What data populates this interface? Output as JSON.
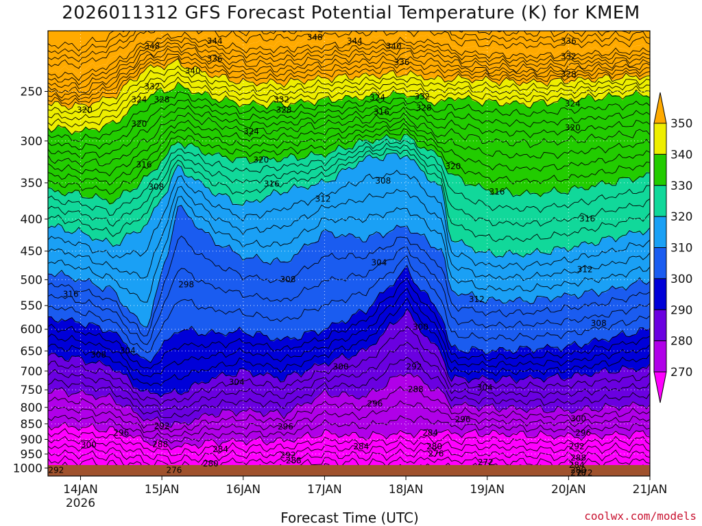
{
  "title": "2026011312 GFS Forecast Potential Temperature (K) for KMEM",
  "credit": "coolwx.com/models",
  "chart_data": {
    "type": "heatmap",
    "title": "2026011312 GFS Forecast Potential Temperature (K) for KMEM",
    "xlabel": "Forecast Time (UTC)",
    "ylabel": "",
    "y_log_pressure": true,
    "ylim": [
      1030,
      200
    ],
    "xlim_days": [
      13.6,
      21.0
    ],
    "x_ticks": [
      {
        "label": "14JAN",
        "sub": "2026",
        "day": 14
      },
      {
        "label": "15JAN",
        "sub": "",
        "day": 15
      },
      {
        "label": "16JAN",
        "sub": "",
        "day": 16
      },
      {
        "label": "17JAN",
        "sub": "",
        "day": 17
      },
      {
        "label": "18JAN",
        "sub": "",
        "day": 18
      },
      {
        "label": "19JAN",
        "sub": "",
        "day": 19
      },
      {
        "label": "20JAN",
        "sub": "",
        "day": 20
      },
      {
        "label": "21JAN",
        "sub": "",
        "day": 21
      }
    ],
    "y_ticks": [
      {
        "label": "250",
        "p": 250
      },
      {
        "label": "300",
        "p": 300
      },
      {
        "label": "350",
        "p": 350
      },
      {
        "label": "400",
        "p": 400
      },
      {
        "label": "450",
        "p": 450
      },
      {
        "label": "500",
        "p": 500
      },
      {
        "label": "550",
        "p": 550
      },
      {
        "label": "600",
        "p": 600
      },
      {
        "label": "650",
        "p": 650
      },
      {
        "label": "700",
        "p": 700
      },
      {
        "label": "750",
        "p": 750
      },
      {
        "label": "800",
        "p": 800
      },
      {
        "label": "850",
        "p": 850
      },
      {
        "label": "900",
        "p": 900
      },
      {
        "label": "950",
        "p": 950
      },
      {
        "label": "1000",
        "p": 1000
      }
    ],
    "colorbar": {
      "levels": [
        270,
        280,
        290,
        300,
        310,
        320,
        330,
        340,
        350
      ],
      "labels": [
        "270",
        "280",
        "290",
        "300",
        "310",
        "320",
        "330",
        "340",
        "350"
      ],
      "colors": [
        "#ff00ff",
        "#b000e8",
        "#6a00e0",
        "#0000d8",
        "#1a5cf0",
        "#1aa0f5",
        "#11d89a",
        "#22cc00",
        "#eeee00",
        "#ffaa00"
      ]
    },
    "band_colors": [
      "#ff00ff",
      "#ee00f6",
      "#c000ee",
      "#9b00e6",
      "#7a00e0",
      "#5200d8",
      "#1d00d0",
      "#0000d8",
      "#0020dc",
      "#1048e8",
      "#1a6df2",
      "#1a8cf5",
      "#20a8f5",
      "#22c8e8",
      "#11dda8",
      "#10e080",
      "#22cc22",
      "#22c400",
      "#88dd00",
      "#e0e800",
      "#ffd400",
      "#ffaa00"
    ],
    "columns": [
      {
        "d": 13.6,
        "p": [
          855,
          750,
          660,
          575,
          485,
          410,
          360,
          320,
          285,
          262,
          248,
          230
        ]
      },
      {
        "d": 14.0,
        "p": [
          860,
          760,
          670,
          585,
          500,
          420,
          365,
          325,
          290,
          264,
          250,
          232
        ]
      },
      {
        "d": 14.4,
        "p": [
          870,
          775,
          690,
          605,
          520,
          440,
          375,
          325,
          282,
          255,
          238,
          222
        ]
      },
      {
        "d": 14.8,
        "p": [
          905,
          835,
          760,
          680,
          600,
          410,
          345,
          300,
          255,
          230,
          218,
          205
        ]
      },
      {
        "d": 15.2,
        "p": [
          925,
          855,
          760,
          600,
          380,
          330,
          300,
          272,
          245,
          225,
          212,
          200
        ]
      },
      {
        "d": 15.6,
        "p": [
          910,
          820,
          720,
          610,
          430,
          360,
          315,
          280,
          255,
          235,
          220,
          205
        ]
      },
      {
        "d": 16.0,
        "p": [
          905,
          810,
          700,
          605,
          460,
          380,
          322,
          290,
          262,
          242,
          226,
          210
        ]
      },
      {
        "d": 16.5,
        "p": [
          905,
          820,
          720,
          625,
          470,
          360,
          320,
          288,
          262,
          242,
          226,
          210
        ]
      },
      {
        "d": 17.0,
        "p": [
          880,
          760,
          680,
          600,
          420,
          350,
          315,
          282,
          258,
          238,
          222,
          208
        ]
      },
      {
        "d": 17.5,
        "p": [
          890,
          770,
          650,
          560,
          430,
          320,
          300,
          278,
          255,
          236,
          220,
          206
        ]
      },
      {
        "d": 18.0,
        "p": [
          880,
          700,
          560,
          480,
          410,
          315,
          295,
          275,
          252,
          234,
          218,
          205
        ]
      },
      {
        "d": 18.45,
        "p": [
          875,
          760,
          660,
          570,
          450,
          360,
          320,
          295,
          262,
          240,
          220,
          205
        ]
      },
      {
        "d": 18.55,
        "p": [
          880,
          790,
          720,
          645,
          520,
          430,
          340,
          290,
          255,
          238,
          225,
          212
        ]
      },
      {
        "d": 19.0,
        "p": [
          880,
          800,
          720,
          650,
          540,
          455,
          360,
          300,
          260,
          240,
          228,
          215
        ]
      },
      {
        "d": 19.5,
        "p": [
          885,
          805,
          720,
          645,
          540,
          455,
          365,
          303,
          262,
          242,
          230,
          216
        ]
      },
      {
        "d": 20.0,
        "p": [
          890,
          810,
          715,
          640,
          530,
          445,
          360,
          300,
          258,
          240,
          228,
          215
        ]
      },
      {
        "d": 20.5,
        "p": [
          885,
          800,
          700,
          620,
          520,
          430,
          350,
          295,
          255,
          238,
          226,
          214
        ]
      },
      {
        "d": 21.0,
        "p": [
          880,
          790,
          690,
          600,
          500,
          415,
          340,
          290,
          252,
          236,
          225,
          212
        ]
      }
    ],
    "contour_labels": [
      {
        "t": "348",
        "d": 14.88,
        "p": 212
      },
      {
        "t": "344",
        "d": 15.65,
        "p": 208
      },
      {
        "t": "348",
        "d": 16.88,
        "p": 205
      },
      {
        "t": "344",
        "d": 17.37,
        "p": 208
      },
      {
        "t": "340",
        "d": 17.85,
        "p": 212
      },
      {
        "t": "336",
        "d": 17.95,
        "p": 225
      },
      {
        "t": "340",
        "d": 15.38,
        "p": 232
      },
      {
        "t": "336",
        "d": 15.65,
        "p": 222
      },
      {
        "t": "336",
        "d": 20.0,
        "p": 208
      },
      {
        "t": "332",
        "d": 20.0,
        "p": 220
      },
      {
        "t": "328",
        "d": 20.0,
        "p": 235
      },
      {
        "t": "324",
        "d": 20.05,
        "p": 262
      },
      {
        "t": "332",
        "d": 14.88,
        "p": 246
      },
      {
        "t": "324",
        "d": 14.72,
        "p": 258
      },
      {
        "t": "328",
        "d": 15.0,
        "p": 258
      },
      {
        "t": "332",
        "d": 16.47,
        "p": 258
      },
      {
        "t": "328",
        "d": 16.5,
        "p": 268
      },
      {
        "t": "324",
        "d": 17.65,
        "p": 256
      },
      {
        "t": "316",
        "d": 17.7,
        "p": 270
      },
      {
        "t": "332",
        "d": 18.2,
        "p": 255
      },
      {
        "t": "328",
        "d": 18.22,
        "p": 266
      },
      {
        "t": "320",
        "d": 14.05,
        "p": 268
      },
      {
        "t": "320",
        "d": 14.72,
        "p": 282
      },
      {
        "t": "324",
        "d": 16.1,
        "p": 290
      },
      {
        "t": "320",
        "d": 16.22,
        "p": 322
      },
      {
        "t": "316",
        "d": 14.78,
        "p": 328
      },
      {
        "t": "316",
        "d": 16.35,
        "p": 352
      },
      {
        "t": "312",
        "d": 16.98,
        "p": 372
      },
      {
        "t": "308",
        "d": 14.93,
        "p": 356
      },
      {
        "t": "308",
        "d": 17.72,
        "p": 348
      },
      {
        "t": "320",
        "d": 18.58,
        "p": 330
      },
      {
        "t": "320",
        "d": 20.05,
        "p": 286
      },
      {
        "t": "316",
        "d": 19.12,
        "p": 362
      },
      {
        "t": "316",
        "d": 20.23,
        "p": 400
      },
      {
        "t": "312",
        "d": 20.2,
        "p": 482
      },
      {
        "t": "312",
        "d": 18.87,
        "p": 538
      },
      {
        "t": "308",
        "d": 20.37,
        "p": 588
      },
      {
        "t": "304",
        "d": 17.67,
        "p": 470
      },
      {
        "t": "308",
        "d": 16.55,
        "p": 500
      },
      {
        "t": "298",
        "d": 15.3,
        "p": 510
      },
      {
        "t": "316",
        "d": 13.88,
        "p": 528
      },
      {
        "t": "308",
        "d": 14.22,
        "p": 660
      },
      {
        "t": "304",
        "d": 14.58,
        "p": 650
      },
      {
        "t": "304",
        "d": 15.92,
        "p": 730
      },
      {
        "t": "300",
        "d": 17.2,
        "p": 690
      },
      {
        "t": "300",
        "d": 18.18,
        "p": 596
      },
      {
        "t": "292",
        "d": 18.1,
        "p": 690
      },
      {
        "t": "288",
        "d": 18.12,
        "p": 750
      },
      {
        "t": "296",
        "d": 17.62,
        "p": 790
      },
      {
        "t": "296",
        "d": 16.52,
        "p": 860
      },
      {
        "t": "304",
        "d": 18.97,
        "p": 745
      },
      {
        "t": "300",
        "d": 20.12,
        "p": 835
      },
      {
        "t": "296",
        "d": 18.7,
        "p": 838
      },
      {
        "t": "296",
        "d": 20.18,
        "p": 880
      },
      {
        "t": "292",
        "d": 20.1,
        "p": 925
      },
      {
        "t": "284",
        "d": 18.3,
        "p": 880
      },
      {
        "t": "280",
        "d": 18.35,
        "p": 925
      },
      {
        "t": "276",
        "d": 18.37,
        "p": 950
      },
      {
        "t": "272",
        "d": 18.98,
        "p": 980
      },
      {
        "t": "288",
        "d": 20.12,
        "p": 965
      },
      {
        "t": "284",
        "d": 20.1,
        "p": 990
      },
      {
        "t": "280",
        "d": 20.12,
        "p": 1010
      },
      {
        "t": "276",
        "d": 20.12,
        "p": 1035
      },
      {
        "t": "272",
        "d": 20.2,
        "p": 1070
      },
      {
        "t": "292",
        "d": 15.0,
        "p": 858
      },
      {
        "t": "296",
        "d": 14.5,
        "p": 880
      },
      {
        "t": "300",
        "d": 14.1,
        "p": 920
      },
      {
        "t": "288",
        "d": 14.98,
        "p": 918
      },
      {
        "t": "284",
        "d": 15.72,
        "p": 935
      },
      {
        "t": "280",
        "d": 15.6,
        "p": 985
      },
      {
        "t": "276",
        "d": 15.15,
        "p": 1010
      },
      {
        "t": "284",
        "d": 17.45,
        "p": 925
      },
      {
        "t": "292",
        "d": 16.55,
        "p": 955
      },
      {
        "t": "288",
        "d": 16.62,
        "p": 975
      },
      {
        "t": "292",
        "d": 13.7,
        "p": 1010
      }
    ]
  }
}
